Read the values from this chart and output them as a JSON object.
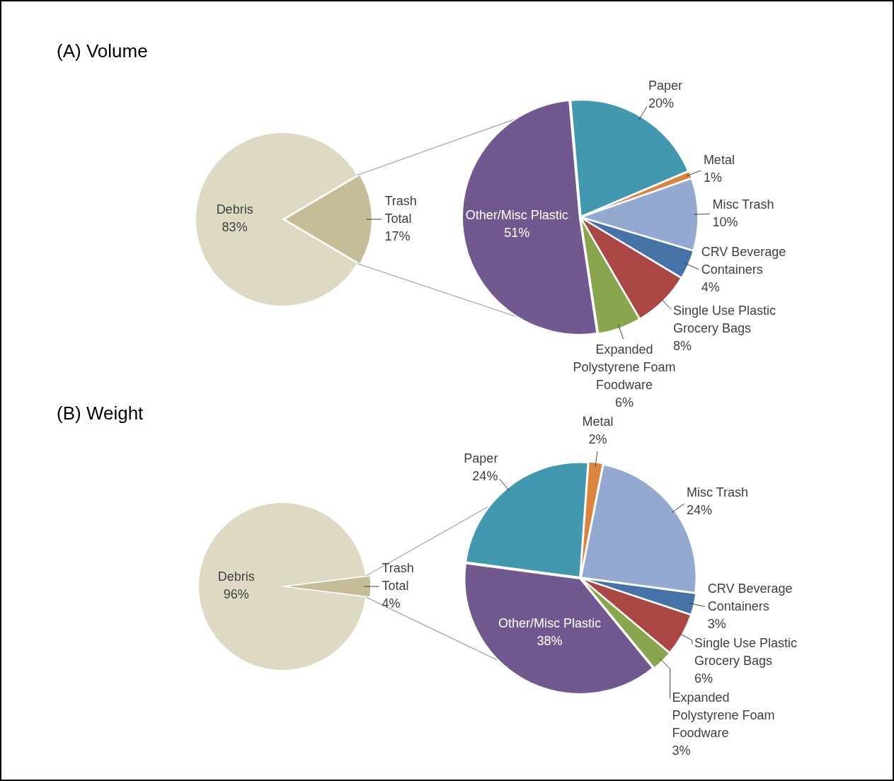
{
  "chart_data": [
    {
      "type": "pie",
      "title": "(A) Volume",
      "categories": [
        "Debris",
        "Trash Total"
      ],
      "values": [
        83,
        17
      ],
      "value_labels": [
        "83%",
        "17%"
      ],
      "colors": [
        "#ddd9c3",
        "#c4bd97"
      ],
      "legend": false
    },
    {
      "type": "pie",
      "categories": [
        "Paper",
        "Metal",
        "Misc Trash",
        "CRV Beverage Containers",
        "Single Use Plastic Grocery Bags",
        "Expanded Polystyrene Foam Foodware",
        "Other/Misc Plastic"
      ],
      "values": [
        20,
        1,
        10,
        4,
        8,
        6,
        51
      ],
      "value_labels": [
        "20%",
        "1%",
        "10%",
        "4%",
        "8%",
        "6%",
        "51%"
      ],
      "colors": [
        "#4198af",
        "#db843d",
        "#93a9cf",
        "#4572a7",
        "#aa4643",
        "#89a54e",
        "#71588f"
      ],
      "legend": false
    },
    {
      "type": "pie",
      "title": "(B) Weight",
      "categories": [
        "Debris",
        "Trash Total"
      ],
      "values": [
        96,
        4
      ],
      "value_labels": [
        "96%",
        "4%"
      ],
      "colors": [
        "#ddd9c3",
        "#c4bd97"
      ],
      "legend": false
    },
    {
      "type": "pie",
      "categories": [
        "Metal",
        "Misc Trash",
        "CRV Beverage Containers",
        "Single Use Plastic Grocery Bags",
        "Expanded Polystyrene Foam Foodware",
        "Other/Misc Plastic",
        "Paper"
      ],
      "values": [
        2,
        24,
        3,
        6,
        3,
        38,
        24
      ],
      "value_labels": [
        "2%",
        "24%",
        "3%",
        "6%",
        "3%",
        "38%",
        "24%"
      ],
      "colors": [
        "#db843d",
        "#93a9cf",
        "#4572a7",
        "#aa4643",
        "#89a54e",
        "#71588f",
        "#4198af"
      ],
      "legend": false
    }
  ]
}
